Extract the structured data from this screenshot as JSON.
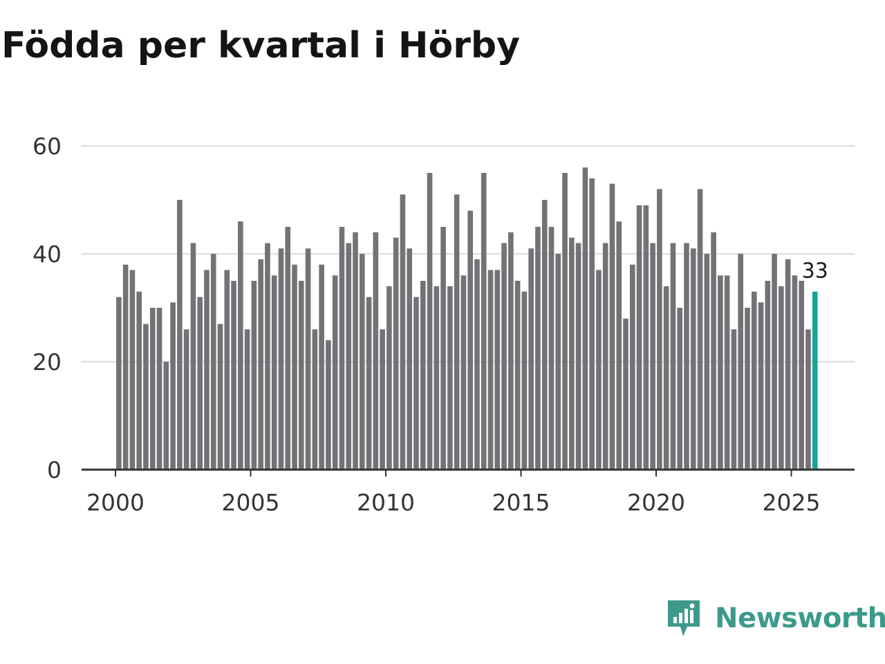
{
  "chart_data": {
    "type": "bar",
    "title": "Födda per kvartal i Hörby",
    "xlabel": "",
    "ylabel": "",
    "ylim": [
      0,
      60
    ],
    "yticks": [
      0,
      20,
      40,
      60
    ],
    "xticks": [
      2000,
      2005,
      2010,
      2015,
      2020,
      2025
    ],
    "x_start_year": 2000,
    "periods_per_year": 4,
    "grid": true,
    "bar_color": "#737276",
    "highlight_color": "#16a596",
    "highlight_label": "33",
    "values": [
      32,
      38,
      37,
      33,
      27,
      30,
      30,
      20,
      31,
      50,
      26,
      42,
      32,
      37,
      40,
      27,
      37,
      35,
      46,
      26,
      35,
      39,
      42,
      36,
      41,
      45,
      38,
      35,
      41,
      26,
      38,
      24,
      36,
      45,
      42,
      44,
      40,
      32,
      44,
      26,
      34,
      43,
      51,
      41,
      32,
      35,
      55,
      34,
      45,
      34,
      51,
      36,
      48,
      39,
      55,
      37,
      37,
      42,
      44,
      35,
      33,
      41,
      45,
      50,
      45,
      40,
      55,
      43,
      42,
      56,
      54,
      37,
      42,
      53,
      46,
      28,
      38,
      49,
      49,
      42,
      52,
      34,
      42,
      30,
      42,
      41,
      52,
      40,
      44,
      36,
      36,
      26,
      40,
      30,
      33,
      31,
      35,
      40,
      34,
      39,
      36,
      35,
      26,
      33
    ]
  },
  "brand": {
    "name": "Newsworthy",
    "color": "#3d9a8b"
  }
}
